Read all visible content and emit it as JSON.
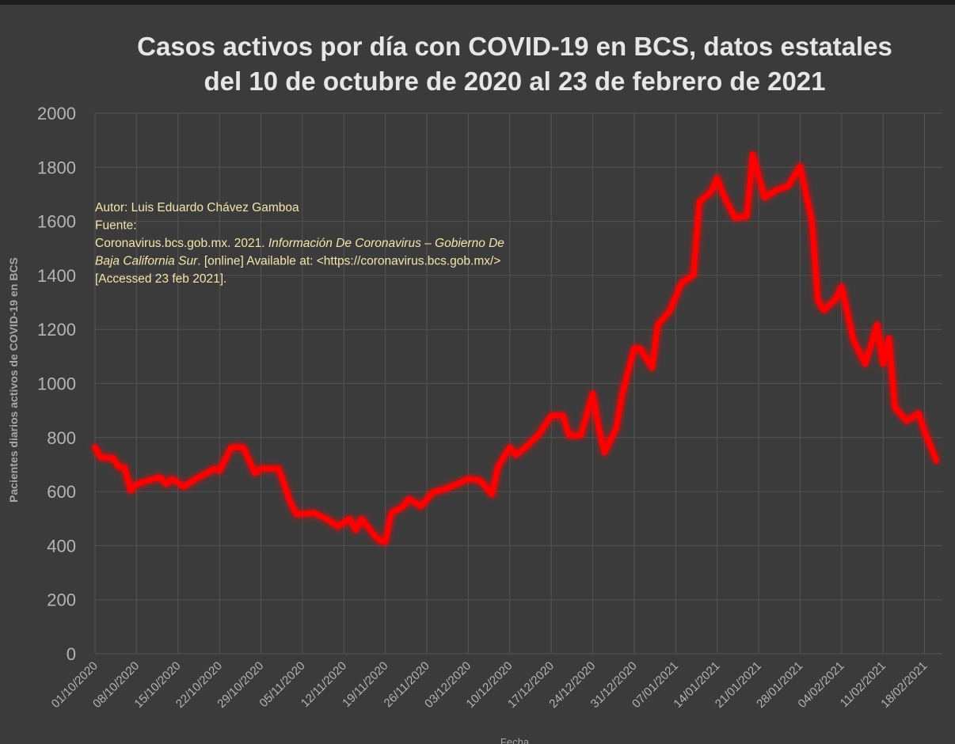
{
  "chart_data": {
    "type": "line",
    "title": [
      "Casos activos por día con COVID-19 en BCS, datos estatales",
      "del 10 de octubre de 2020 al 23 de febrero de 2021"
    ],
    "y_label": "Pacientes diarios activos de COVID-19 en BCS",
    "x_label": "Fecha",
    "annotation": [
      [
        {
          "text": "Autor: Luis Eduardo Chávez Gamboa",
          "italic": false
        }
      ],
      [
        {
          "text": "Fuente:",
          "italic": false
        }
      ],
      [
        {
          "text": "Coronavirus.bcs.gob.mx. 2021. ",
          "italic": false
        },
        {
          "text": "Información De Coronavirus – Gobierno De",
          "italic": true
        }
      ],
      [
        {
          "text": "Baja California Sur",
          "italic": true
        },
        {
          "text": ". [online] Available at: <https://coronavirus.bcs.gob.mx/>",
          "italic": false
        }
      ],
      [
        {
          "text": "[Accessed  23 feb 2021].",
          "italic": false
        }
      ]
    ],
    "x": [
      "01/10/2020",
      "02/10/2020",
      "04/10/2020",
      "05/10/2020",
      "06/10/2020",
      "07/10/2020",
      "08/10/2020",
      "10/10/2020",
      "12/10/2020",
      "13/10/2020",
      "14/10/2020",
      "16/10/2020",
      "18/10/2020",
      "20/10/2020",
      "21/10/2020",
      "22/10/2020",
      "24/10/2020",
      "26/10/2020",
      "28/10/2020",
      "29/10/2020",
      "30/10/2020",
      "01/11/2020",
      "03/11/2020",
      "04/11/2020",
      "07/11/2020",
      "09/11/2020",
      "11/11/2020",
      "13/11/2020",
      "14/11/2020",
      "15/11/2020",
      "17/11/2020",
      "18/11/2020",
      "19/11/2020",
      "20/11/2020",
      "22/11/2020",
      "23/11/2020",
      "25/11/2020",
      "27/11/2020",
      "29/11/2020",
      "01/12/2020",
      "03/12/2020",
      "05/12/2020",
      "07/12/2020",
      "08/12/2020",
      "10/12/2020",
      "11/12/2020",
      "13/12/2020",
      "15/12/2020",
      "17/12/2020",
      "19/12/2020",
      "20/12/2020",
      "22/12/2020",
      "24/12/2020",
      "25/12/2020",
      "26/12/2020",
      "28/12/2020",
      "29/12/2020",
      "31/12/2020",
      "01/01/2021",
      "03/01/2021",
      "04/01/2021",
      "06/01/2021",
      "08/01/2021",
      "10/01/2021",
      "11/01/2021",
      "13/01/2021",
      "14/01/2021",
      "15/01/2021",
      "17/01/2021",
      "19/01/2021",
      "20/01/2021",
      "22/01/2021",
      "24/01/2021",
      "26/01/2021",
      "28/01/2021",
      "30/01/2021",
      "31/01/2021",
      "01/02/2021",
      "03/02/2021",
      "04/02/2021",
      "06/02/2021",
      "08/02/2021",
      "10/02/2021",
      "11/02/2021",
      "12/02/2021",
      "13/02/2021",
      "15/02/2021",
      "17/02/2021",
      "18/02/2021",
      "20/02/2021"
    ],
    "series": [
      {
        "name": "Casos activos",
        "color": "#ff0000",
        "values": [
          764,
          726,
          726,
          691,
          690,
          603,
          627,
          641,
          653,
          627,
          647,
          618,
          647,
          670,
          685,
          676,
          764,
          764,
          668,
          685,
          685,
          685,
          559,
          515,
          521,
          500,
          471,
          500,
          457,
          500,
          442,
          419,
          413,
          521,
          545,
          574,
          545,
          597,
          609,
          627,
          647,
          641,
          589,
          691,
          764,
          735,
          770,
          814,
          881,
          881,
          808,
          808,
          963,
          837,
          744,
          837,
          963,
          1130,
          1130,
          1057,
          1218,
          1268,
          1373,
          1400,
          1672,
          1710,
          1760,
          1701,
          1613,
          1619,
          1848,
          1687,
          1716,
          1731,
          1804,
          1599,
          1306,
          1271,
          1312,
          1359,
          1160,
          1072,
          1218,
          1072,
          1168,
          911,
          861,
          890,
          823,
          714
        ]
      }
    ],
    "xlim": [
      "01/10/2020",
      "21/02/2021"
    ],
    "xticks": [
      "01/10/2020",
      "08/10/2020",
      "15/10/2020",
      "22/10/2020",
      "29/10/2020",
      "05/11/2020",
      "12/11/2020",
      "19/11/2020",
      "26/11/2020",
      "03/12/2020",
      "10/12/2020",
      "17/12/2020",
      "24/12/2020",
      "31/12/2020",
      "07/01/2021",
      "14/01/2021",
      "21/01/2021",
      "28/01/2021",
      "04/02/2021",
      "11/02/2021",
      "18/02/2021"
    ],
    "ylim": [
      0,
      2000
    ],
    "yticks": [
      0,
      200,
      400,
      600,
      800,
      1000,
      1200,
      1400,
      1600,
      1800,
      2000
    ],
    "grid": true
  }
}
